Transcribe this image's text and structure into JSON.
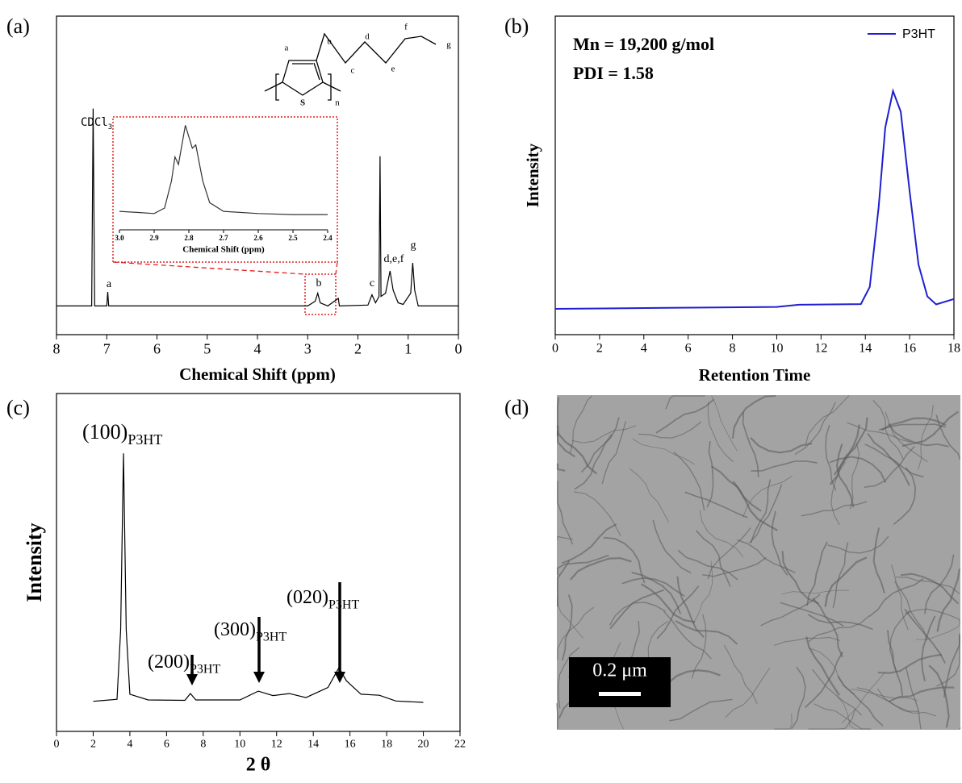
{
  "chart_data": [
    {
      "type": "line",
      "panel": "(a)",
      "xlabel": "Chemical Shift (ppm)",
      "xlim": [
        8,
        0
      ],
      "xticks": [
        8,
        7,
        6,
        5,
        4,
        3,
        2,
        1,
        0
      ],
      "ylim": [
        0,
        100
      ],
      "x": [
        8,
        7.3,
        7.27,
        7.24,
        7.0,
        6.98,
        6.96,
        3.0,
        2.85,
        2.8,
        2.75,
        2.6,
        2.39,
        2.37,
        1.8,
        1.72,
        1.65,
        1.58,
        1.56,
        1.54,
        1.45,
        1.36,
        1.3,
        1.2,
        1.1,
        0.95,
        0.91,
        0.87,
        0.8,
        0
      ],
      "series": [
        {
          "color": "#000000",
          "values": [
            9,
            9,
            71,
            9,
            9,
            13.4,
            9,
            9,
            10.5,
            13,
            10,
            9,
            11.4,
            9,
            9.3,
            12.5,
            10,
            12,
            56,
            12,
            13,
            20,
            14,
            10,
            9.5,
            13,
            22.5,
            14,
            9,
            9
          ]
        }
      ],
      "annotations": [
        {
          "text": "CDCl",
          "sub": "3"
        },
        {
          "text": "a"
        },
        {
          "text": "b"
        },
        {
          "text": "c"
        },
        {
          "text": "d,e,f"
        },
        {
          "text": "g"
        }
      ],
      "structure_labels": [
        "a",
        "b",
        "c",
        "d",
        "e",
        "f",
        "g",
        "S",
        "n"
      ]
    },
    {
      "type": "line",
      "xlabel": "Chemical Shift (ppm)",
      "xlim": [
        3,
        2.4
      ],
      "xticks": [
        {
          "value": 3,
          "label": "3.0"
        },
        2.9,
        2.8,
        2.7,
        2.6,
        2.5,
        2.4
      ],
      "ylim": [
        0,
        100
      ],
      "x": [
        3.0,
        2.95,
        2.9,
        2.87,
        2.85,
        2.84,
        2.83,
        2.81,
        2.79,
        2.78,
        2.76,
        2.74,
        2.7,
        2.6,
        2.5,
        2.4
      ],
      "series": [
        {
          "color": "#333333",
          "values": [
            17,
            16,
            15,
            20,
            45,
            67,
            60,
            96,
            75,
            78,
            45,
            25,
            17,
            15,
            14,
            14
          ]
        }
      ]
    },
    {
      "type": "line",
      "panel": "(b)",
      "xlabel": "Retention Time",
      "ylabel": "Intensity",
      "xlim": [
        0,
        18
      ],
      "xticks": [
        0,
        2,
        4,
        6,
        8,
        10,
        12,
        14,
        16,
        18
      ],
      "ylim": [
        0,
        100
      ],
      "x": [
        0,
        5,
        10,
        11,
        13.8,
        14.2,
        14.6,
        14.9,
        15.25,
        15.6,
        16,
        16.4,
        16.8,
        17.2,
        18
      ],
      "series": [
        {
          "name": "P3HT",
          "color": "#1f1fd0",
          "values": [
            8.1,
            8.4,
            8.7,
            9.4,
            9.6,
            15,
            40,
            65,
            76.5,
            70,
            45,
            22,
            12,
            9.5,
            11.2
          ]
        }
      ],
      "annotations": [
        {
          "text": "Mn = 19,200 g/mol"
        },
        {
          "text": "PDI = 1.58"
        }
      ],
      "legend": "upper right"
    },
    {
      "type": "line",
      "panel": "(c)",
      "xlabel": "2 θ",
      "ylabel": "Intensity",
      "xlim": [
        0,
        22
      ],
      "xticks": [
        0,
        2,
        4,
        6,
        8,
        10,
        12,
        14,
        16,
        18,
        20,
        22
      ],
      "ylim": [
        0,
        100
      ],
      "x": [
        2,
        3.3,
        3.5,
        3.65,
        3.8,
        4.0,
        5,
        7,
        7.3,
        7.6,
        10,
        11,
        11.8,
        12.7,
        13.6,
        14.8,
        15.4,
        15.8,
        16,
        16.6,
        17.6,
        18.5,
        20
      ],
      "series": [
        {
          "color": "#000000",
          "values": [
            8.9,
            9.5,
            30,
            82.3,
            30,
            11,
            9.3,
            9.2,
            11.2,
            9.3,
            9.3,
            11.9,
            10.6,
            11.2,
            10,
            13,
            18.9,
            15,
            14,
            11,
            10.7,
            9,
            8.6
          ]
        }
      ],
      "annotations": [
        {
          "text": "(100)",
          "sub": "P3HT"
        },
        {
          "text": "(200)",
          "sub": "P3HT"
        },
        {
          "text": "(300)",
          "sub": "P3HT"
        },
        {
          "text": "(020)",
          "sub": "P3HT"
        }
      ]
    }
  ],
  "panel_d": {
    "panel": "(d)",
    "scale_bar": "0.2 μm"
  }
}
